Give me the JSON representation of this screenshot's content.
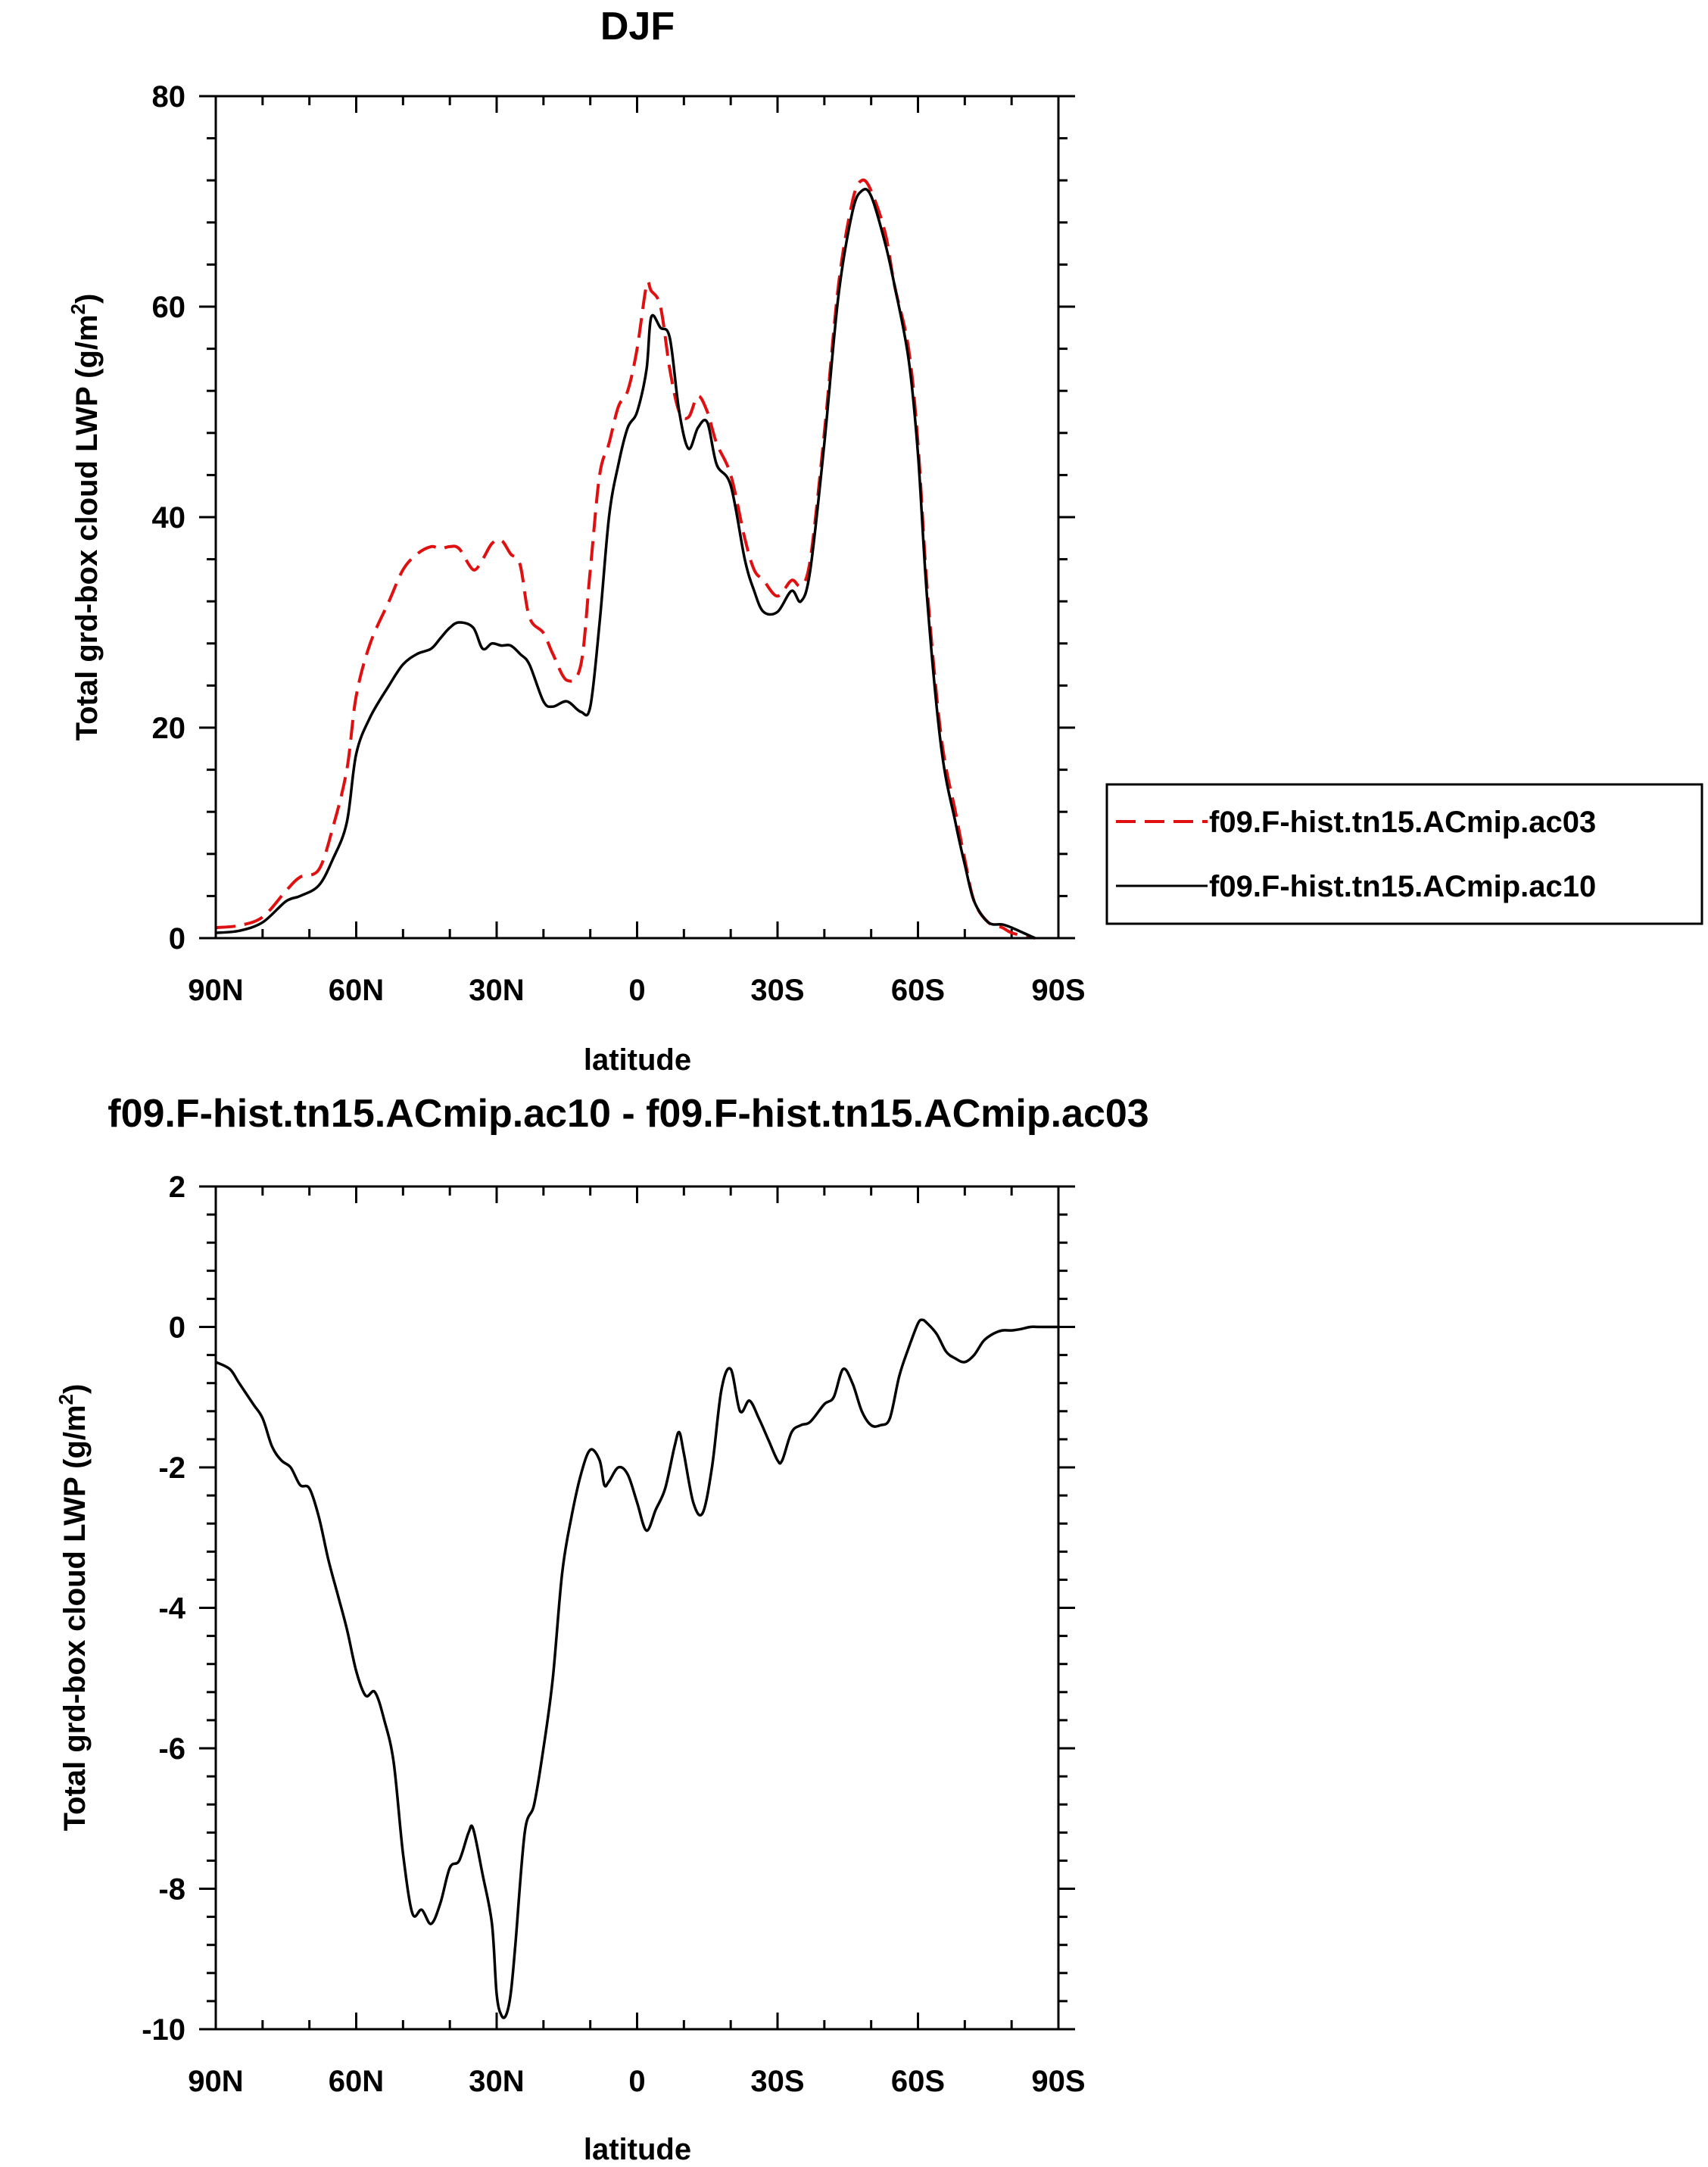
{
  "chart_data": [
    {
      "type": "line",
      "title": "DJF",
      "xlabel": "latitude",
      "ylabel": "Total grd-box cloud LWP (g/m",
      "ylabel_sup": "2",
      "ylabel_end": ")",
      "xlim": [
        90,
        -90
      ],
      "ylim": [
        0,
        80
      ],
      "xticks": [
        90,
        60,
        30,
        0,
        -30,
        -60,
        -90
      ],
      "xtick_labels": [
        "90N",
        "60N",
        "30N",
        "0",
        "30S",
        "60S",
        "90S"
      ],
      "yticks": [
        0,
        20,
        40,
        60,
        80
      ],
      "ytick_labels": [
        "0",
        "20",
        "40",
        "60",
        "80"
      ],
      "legend_position": "right",
      "series": [
        {
          "name": "f09.F-hist.tn15.ACmip.ac03",
          "color": "#e01010",
          "style": "dashed",
          "x": [
            90,
            85,
            80,
            75,
            72,
            68,
            65,
            62,
            60,
            57,
            53,
            50,
            47,
            44,
            42,
            40,
            38,
            35,
            33,
            31,
            29,
            27,
            25,
            23,
            20,
            18,
            15,
            12,
            10,
            8,
            6,
            4,
            2,
            0,
            -2,
            -3,
            -5,
            -7,
            -9,
            -11,
            -13,
            -15,
            -17,
            -20,
            -23,
            -25,
            -27,
            -30,
            -33,
            -35,
            -37,
            -40,
            -43,
            -46,
            -48,
            -50,
            -53,
            -55,
            -58,
            -60,
            -62,
            -65,
            -68,
            -70,
            -72,
            -75,
            -78,
            -80,
            -83,
            -85
          ],
          "y": [
            1.0,
            1.2,
            2.0,
            4.5,
            5.8,
            6.5,
            10.5,
            16,
            23,
            28,
            32,
            35,
            36.5,
            37.2,
            37.0,
            37.2,
            37.0,
            35.0,
            36.0,
            37.5,
            37.8,
            36.5,
            35.5,
            30.5,
            29,
            27,
            24.5,
            26,
            35,
            44,
            47,
            50.5,
            52,
            56,
            62,
            61.5,
            60,
            54,
            50,
            49.5,
            51.5,
            50,
            47,
            44,
            38,
            35,
            34,
            32.5,
            34,
            33.5,
            36,
            48,
            62,
            70,
            72,
            71,
            67,
            62,
            56,
            47,
            33,
            19,
            12,
            7.5,
            3.5,
            1.5,
            1.0,
            0.5,
            0.2,
            0.0
          ]
        },
        {
          "name": "f09.F-hist.tn15.ACmip.ac10",
          "color": "#000000",
          "style": "solid",
          "x": [
            90,
            85,
            80,
            75,
            72,
            68,
            65,
            62,
            60,
            57,
            53,
            50,
            47,
            44,
            42,
            40,
            38,
            35,
            33,
            31,
            29,
            27,
            25,
            23,
            20,
            18,
            15,
            12,
            10,
            8,
            6,
            4,
            2,
            0,
            -2,
            -3,
            -5,
            -7,
            -9,
            -11,
            -13,
            -15,
            -17,
            -20,
            -23,
            -25,
            -27,
            -30,
            -33,
            -35,
            -37,
            -40,
            -43,
            -46,
            -48,
            -50,
            -53,
            -55,
            -58,
            -60,
            -62,
            -65,
            -68,
            -70,
            -72,
            -75,
            -78,
            -80,
            -83,
            -85
          ],
          "y": [
            0.5,
            0.7,
            1.5,
            3.5,
            4.0,
            5.0,
            7.5,
            11,
            17.5,
            21,
            24,
            26,
            27,
            27.5,
            28.5,
            29.5,
            30,
            29.5,
            27.5,
            28,
            27.8,
            27.8,
            27,
            26,
            22.5,
            22,
            22.5,
            21.5,
            22,
            30,
            40,
            45,
            48.5,
            50,
            54,
            59,
            58,
            57,
            50,
            46.5,
            48.5,
            49,
            45,
            43,
            36,
            33,
            31,
            31,
            33,
            32,
            35,
            47,
            61,
            69,
            71,
            70.5,
            66,
            62,
            55,
            46,
            32,
            18,
            11,
            7,
            3.5,
            1.5,
            1.3,
            1.0,
            0.4,
            0.0
          ]
        }
      ]
    },
    {
      "type": "line",
      "title": "f09.F-hist.tn15.ACmip.ac10 - f09.F-hist.tn15.ACmip.ac03",
      "xlabel": "latitude",
      "ylabel": "Total grd-box cloud LWP (g/m",
      "ylabel_sup": "2",
      "ylabel_end": ")",
      "xlim": [
        90,
        -90
      ],
      "ylim": [
        -10,
        2
      ],
      "xticks": [
        90,
        60,
        30,
        0,
        -30,
        -60,
        -90
      ],
      "xtick_labels": [
        "90N",
        "60N",
        "30N",
        "0",
        "30S",
        "60S",
        "90S"
      ],
      "yticks": [
        2,
        0,
        -2,
        -4,
        -6,
        -8,
        -10
      ],
      "ytick_labels": [
        "2",
        "0",
        "-2",
        "-4",
        "-6",
        "-8",
        "-10"
      ],
      "series": [
        {
          "name": "f09.F-hist.tn15.ACmip.ac10 - f09.F-hist.tn15.ACmip.ac03",
          "color": "#000000",
          "style": "solid",
          "x": [
            90,
            87,
            85,
            82,
            80,
            78,
            76,
            74,
            72,
            70,
            68,
            66,
            64,
            62,
            60,
            58,
            56,
            54,
            52,
            50,
            48,
            46,
            44,
            42,
            40,
            38,
            36,
            35,
            33,
            31,
            30,
            29,
            28,
            27,
            26,
            24,
            22,
            20,
            18,
            16,
            14,
            12,
            10,
            8,
            7,
            6,
            4,
            2,
            0,
            -2,
            -4,
            -6,
            -8,
            -9,
            -10,
            -12,
            -14,
            -16,
            -18,
            -20,
            -22,
            -24,
            -26,
            -28,
            -30,
            -31,
            -33,
            -35,
            -37,
            -40,
            -42,
            -44,
            -46,
            -48,
            -50,
            -52,
            -54,
            -56,
            -58,
            -60,
            -61,
            -62,
            -64,
            -66,
            -68,
            -70,
            -72,
            -74,
            -76,
            -78,
            -80,
            -82,
            -84,
            -86,
            -90
          ],
          "y": [
            -0.5,
            -0.6,
            -0.8,
            -1.1,
            -1.3,
            -1.7,
            -1.9,
            -2.0,
            -2.25,
            -2.3,
            -2.7,
            -3.3,
            -3.8,
            -4.3,
            -4.9,
            -5.25,
            -5.2,
            -5.6,
            -6.2,
            -7.5,
            -8.35,
            -8.3,
            -8.5,
            -8.2,
            -7.7,
            -7.6,
            -7.2,
            -7.15,
            -7.8,
            -8.5,
            -9.5,
            -9.8,
            -9.8,
            -9.5,
            -8.8,
            -7.2,
            -6.8,
            -6.0,
            -5.0,
            -3.5,
            -2.7,
            -2.1,
            -1.75,
            -1.9,
            -2.25,
            -2.2,
            -2.0,
            -2.1,
            -2.5,
            -2.9,
            -2.6,
            -2.3,
            -1.7,
            -1.5,
            -1.8,
            -2.5,
            -2.65,
            -2.0,
            -0.9,
            -0.6,
            -1.2,
            -1.05,
            -1.3,
            -1.6,
            -1.9,
            -1.9,
            -1.5,
            -1.4,
            -1.35,
            -1.1,
            -1.0,
            -0.6,
            -0.8,
            -1.2,
            -1.4,
            -1.4,
            -1.3,
            -0.7,
            -0.3,
            0.05,
            0.1,
            0.05,
            -0.1,
            -0.35,
            -0.45,
            -0.5,
            -0.4,
            -0.2,
            -0.1,
            -0.05,
            -0.05,
            -0.03,
            0.0,
            0.0,
            0.0
          ]
        }
      ]
    }
  ]
}
